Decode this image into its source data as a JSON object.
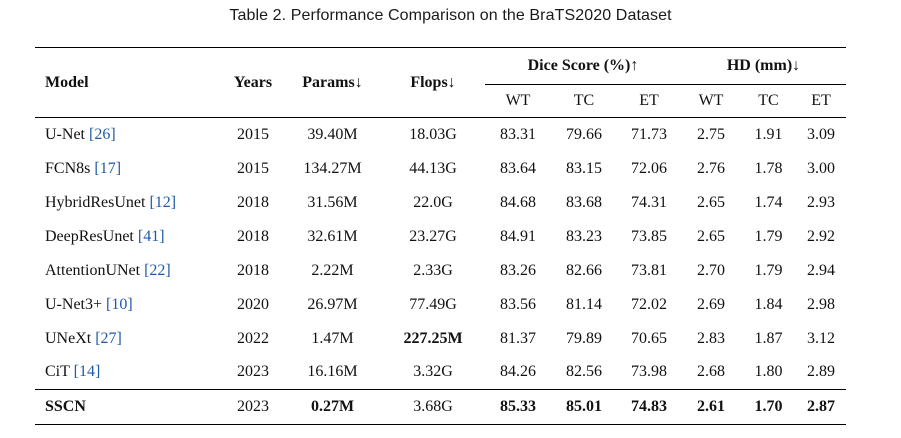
{
  "caption": "Table 2.  Performance Comparison on the BraTS2020 Dataset",
  "header": {
    "model": "Model",
    "years": "Years",
    "params": "Params↓",
    "flops": "Flops↓",
    "dice_group": "Dice Score (%)↑",
    "hd_group": "HD (mm)↓",
    "dice_sub": [
      "WT",
      "TC",
      "ET"
    ],
    "hd_sub": [
      "WT",
      "TC",
      "ET"
    ]
  },
  "rows": [
    {
      "name": "U-Net ",
      "ref": "[26]",
      "year": "2015",
      "params": "39.40M",
      "flops": "18.03G",
      "dice": [
        "83.31",
        "79.66",
        "71.73"
      ],
      "hd": [
        "2.75",
        "1.91",
        "3.09"
      ]
    },
    {
      "name": "FCN8s ",
      "ref": "[17]",
      "year": "2015",
      "params": "134.27M",
      "flops": "44.13G",
      "dice": [
        "83.64",
        "83.15",
        "72.06"
      ],
      "hd": [
        "2.76",
        "1.78",
        "3.00"
      ]
    },
    {
      "name": "HybridResUnet ",
      "ref": "[12]",
      "year": "2018",
      "params": "31.56M",
      "flops": "22.0G",
      "dice": [
        "84.68",
        "83.68",
        "74.31"
      ],
      "hd": [
        "2.65",
        "1.74",
        "2.93"
      ]
    },
    {
      "name": "DeepResUnet ",
      "ref": "[41]",
      "year": "2018",
      "params": "32.61M",
      "flops": "23.27G",
      "dice": [
        "84.91",
        "83.23",
        "73.85"
      ],
      "hd": [
        "2.65",
        "1.79",
        "2.92"
      ]
    },
    {
      "name": "AttentionUNet ",
      "ref": "[22]",
      "year": "2018",
      "params": "2.22M",
      "flops": "2.33G",
      "dice": [
        "83.26",
        "82.66",
        "73.81"
      ],
      "hd": [
        "2.70",
        "1.79",
        "2.94"
      ]
    },
    {
      "name": "U-Net3+ ",
      "ref": "[10]",
      "year": "2020",
      "params": "26.97M",
      "flops": "77.49G",
      "dice": [
        "83.56",
        "81.14",
        "72.02"
      ],
      "hd": [
        "2.69",
        "1.84",
        "2.98"
      ]
    },
    {
      "name": "UNeXt ",
      "ref": "[27]",
      "year": "2022",
      "params": "1.47M",
      "flops": "227.25M",
      "dice": [
        "81.37",
        "79.89",
        "70.65"
      ],
      "hd": [
        "2.83",
        "1.87",
        "3.12"
      ]
    },
    {
      "name": "CiT ",
      "ref": "[14]",
      "year": "2023",
      "params": "16.16M",
      "flops": "3.32G",
      "dice": [
        "84.26",
        "82.56",
        "73.98"
      ],
      "hd": [
        "2.68",
        "1.80",
        "2.89"
      ]
    }
  ],
  "ours": {
    "name": "SSCN",
    "year": "2023",
    "params": "0.27M",
    "flops": "3.68G",
    "dice": [
      "85.33",
      "85.01",
      "74.83"
    ],
    "hd": [
      "2.61",
      "1.70",
      "2.87"
    ]
  }
}
